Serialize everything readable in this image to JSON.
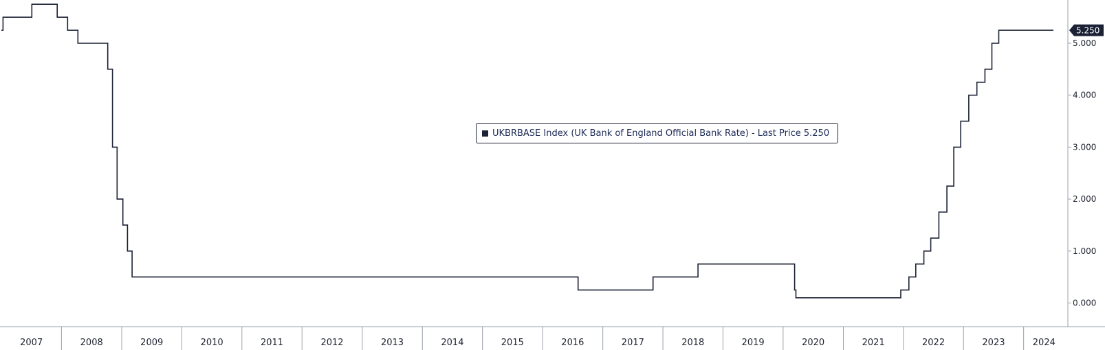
{
  "chart_data": {
    "type": "line",
    "step": true,
    "series": [
      {
        "name": "UKBRBASE Index (UK Bank of England Official Bank Rate)",
        "color": "#1c2236",
        "points": [
          [
            "2007-01-01",
            5.25
          ],
          [
            "2007-01-11",
            5.5
          ],
          [
            "2007-05-10",
            5.5
          ],
          [
            "2007-07-05",
            5.75
          ],
          [
            "2007-12-06",
            5.5
          ],
          [
            "2008-02-07",
            5.25
          ],
          [
            "2008-04-10",
            5.0
          ],
          [
            "2008-10-08",
            4.5
          ],
          [
            "2008-11-06",
            3.0
          ],
          [
            "2008-12-04",
            2.0
          ],
          [
            "2009-01-08",
            1.5
          ],
          [
            "2009-02-05",
            1.0
          ],
          [
            "2009-03-05",
            0.5
          ],
          [
            "2016-08-04",
            0.25
          ],
          [
            "2017-11-02",
            0.5
          ],
          [
            "2018-08-02",
            0.75
          ],
          [
            "2020-03-11",
            0.25
          ],
          [
            "2020-03-19",
            0.1
          ],
          [
            "2021-12-16",
            0.25
          ],
          [
            "2022-02-03",
            0.5
          ],
          [
            "2022-03-17",
            0.75
          ],
          [
            "2022-05-05",
            1.0
          ],
          [
            "2022-06-16",
            1.25
          ],
          [
            "2022-08-04",
            1.75
          ],
          [
            "2022-09-22",
            2.25
          ],
          [
            "2022-11-03",
            3.0
          ],
          [
            "2022-12-15",
            3.5
          ],
          [
            "2023-02-02",
            4.0
          ],
          [
            "2023-03-23",
            4.25
          ],
          [
            "2023-05-11",
            4.5
          ],
          [
            "2023-06-22",
            5.0
          ],
          [
            "2023-08-03",
            5.25
          ],
          [
            "2024-06-30",
            5.25
          ]
        ]
      }
    ],
    "legend_text": "UKBRBASE Index (UK Bank of England Official Bank Rate) - Last Price 5.250",
    "last_price_label": "5.250",
    "y_ticks": [
      "0.000",
      "1.000",
      "2.000",
      "3.000",
      "4.000",
      "5.000"
    ],
    "y_tick_values": [
      0,
      1,
      2,
      3,
      4,
      5
    ],
    "ylim": [
      -0.45,
      5.9
    ],
    "xlim": [
      "2007-01-01",
      "2024-06-30"
    ],
    "x_labels": [
      "2007",
      "2008",
      "2009",
      "2010",
      "2011",
      "2012",
      "2013",
      "2014",
      "2015",
      "2016",
      "2017",
      "2018",
      "2019",
      "2020",
      "2021",
      "2022",
      "2023",
      "2024"
    ],
    "legend_position": "center",
    "grid": false,
    "axis_color": "#9aa0aa",
    "badge_color": "#1c2236"
  }
}
